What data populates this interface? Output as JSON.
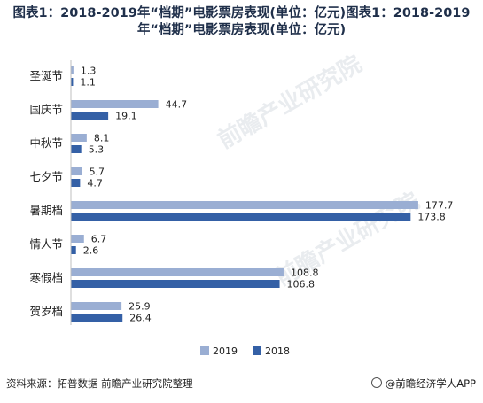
{
  "title": "图表1：2018-2019年“档期”电影票房表现(单位：亿元)图表1：2018-2019年“档期”电影票房表现(单位：亿元)",
  "source": "资料来源：拓普数据 前瞻产业研究院整理",
  "brand": "@前瞻经济学人APP",
  "watermark": "前瞻产业研究院",
  "colors": {
    "s2019": "#9aaed3",
    "s2018": "#3460a6"
  },
  "chart_data": {
    "type": "bar",
    "orientation": "horizontal",
    "title": "图表1：2018-2019年“档期”电影票房表现(单位：亿元)图表1：2018-2019年“档期”电影票房表现(单位：亿元)",
    "unit": "亿元",
    "categories": [
      "圣诞节",
      "国庆节",
      "中秋节",
      "七夕节",
      "暑期档",
      "情人节",
      "寒假档",
      "贺岁档"
    ],
    "series": [
      {
        "name": "2019",
        "values": [
          1.3,
          44.7,
          8.1,
          5.7,
          177.7,
          6.7,
          108.8,
          25.9
        ]
      },
      {
        "name": "2018",
        "values": [
          1.1,
          19.1,
          5.3,
          4.7,
          173.8,
          2.6,
          106.8,
          26.4
        ]
      }
    ],
    "xlim": [
      0,
      180
    ],
    "grid": false,
    "legend_position": "bottom"
  }
}
